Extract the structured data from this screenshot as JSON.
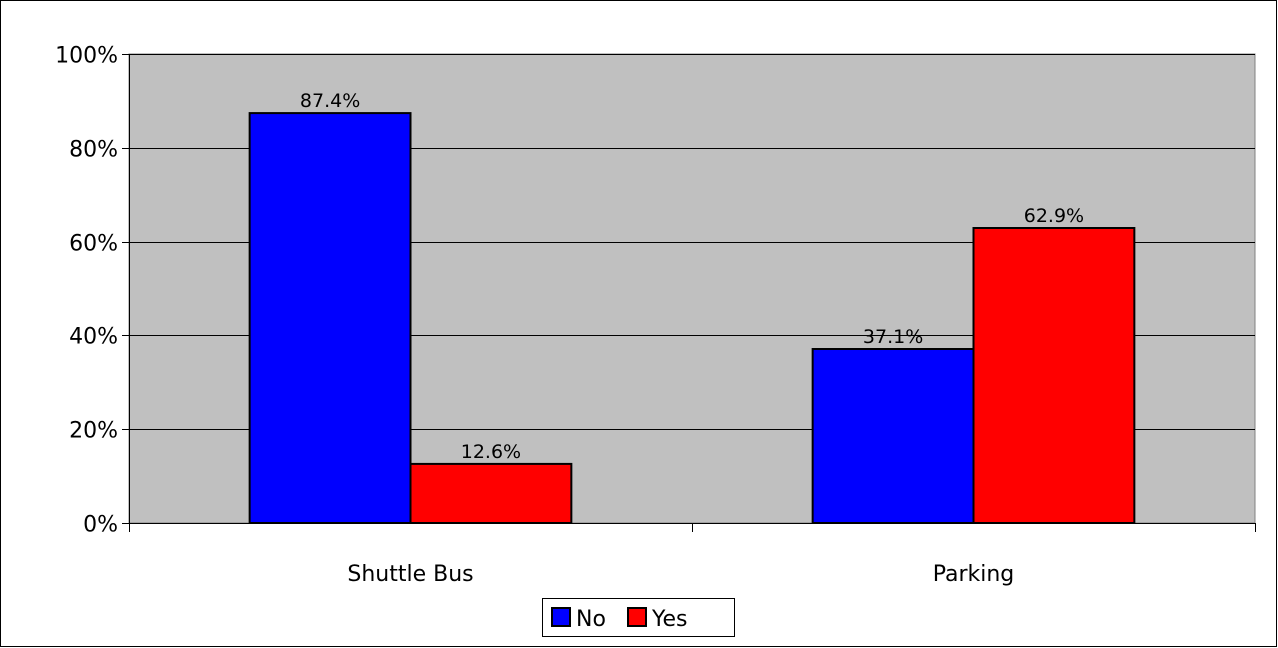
{
  "chart_data": {
    "type": "bar",
    "categories": [
      "Shuttle Bus",
      "Parking"
    ],
    "series": [
      {
        "name": "No",
        "values": [
          87.4,
          37.1
        ],
        "color": "#0000FF"
      },
      {
        "name": "Yes",
        "values": [
          12.6,
          62.9
        ],
        "color": "#FF0000"
      }
    ],
    "data_labels": [
      [
        "87.4%",
        "37.1%"
      ],
      [
        "12.6%",
        "62.9%"
      ]
    ],
    "ylim": [
      0,
      100
    ],
    "yticks": [
      0,
      20,
      40,
      60,
      80,
      100
    ],
    "ytick_labels": [
      "0%",
      "20%",
      "40%",
      "60%",
      "80%",
      "100%"
    ],
    "plot_background": "#C0C0C0",
    "grid": true,
    "legend_position": "bottom",
    "title": "",
    "xlabel": "",
    "ylabel": ""
  }
}
